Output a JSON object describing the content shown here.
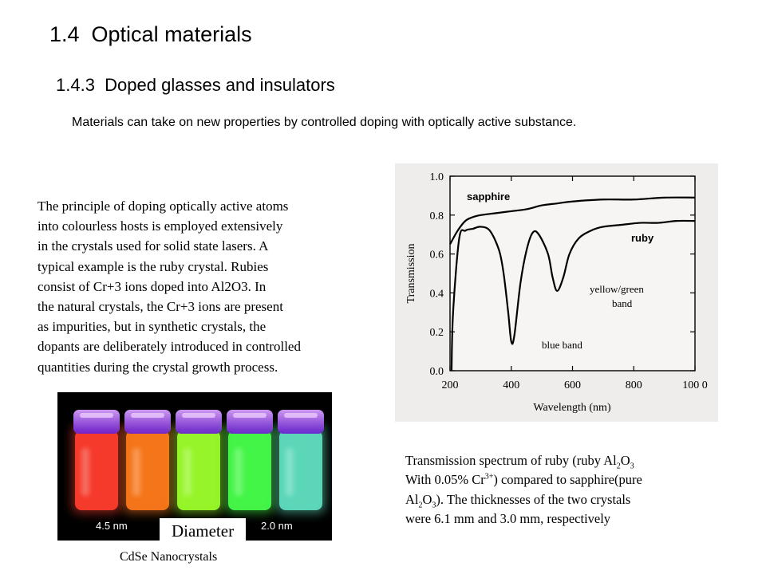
{
  "slide": {
    "title": "1.4  Optical materials",
    "subtitle": "1.4.3  Doped glasses and insulators",
    "intro": "Materials can take on new properties by controlled doping with optically active substance.",
    "body_lines": [
      "The principle of doping optically active atoms",
      "into colourless hosts is employed extensively",
      "in the crystals used for solid state lasers. A",
      "typical example is the ruby crystal. Rubies",
      "consist of Cr+3 ions doped into Al2O3. In",
      "the natural crystals, the Cr+3 ions are present",
      "as impurities, but in synthetic crystals,  the",
      "dopants are deliberately introduced in controlled",
      "quantities during the crystal growth process."
    ]
  },
  "figure": {
    "caption": {
      "p1": "Transmission spectrum of ruby (ruby Al",
      "sub1": "2",
      "p2": "O",
      "sub2": "3",
      "p3": "With 0.05% Cr",
      "sup1": "3+",
      "p4": ") compared to sapphire(pure",
      "p5": "Al",
      "sub3": "2",
      "p6": "O",
      "sub4": "3",
      "p7": "). The thicknesses of the two crystals",
      "p8": "were 6.1 mm and 3.0 mm, respectively"
    }
  },
  "chart_data": {
    "type": "line",
    "xlabel": "Wavelength (nm)",
    "ylabel": "Transmission",
    "xlim": [
      200,
      1000
    ],
    "ylim": [
      0.0,
      1.0
    ],
    "x_ticks": [
      "200",
      "400",
      "600",
      "800",
      "100 0"
    ],
    "y_ticks": [
      "0.0",
      "0.2",
      "0.4",
      "0.6",
      "0.8",
      "1.0"
    ],
    "series": [
      {
        "name": "sapphire",
        "x": [
          200,
          225,
          250,
          275,
          300,
          350,
          400,
          450,
          500,
          550,
          600,
          700,
          800,
          900,
          1000
        ],
        "y": [
          0.65,
          0.72,
          0.77,
          0.79,
          0.8,
          0.81,
          0.82,
          0.83,
          0.85,
          0.86,
          0.87,
          0.88,
          0.88,
          0.89,
          0.89
        ]
      },
      {
        "name": "ruby",
        "x": [
          205,
          210,
          230,
          250,
          275,
          300,
          330,
          360,
          375,
          390,
          400,
          410,
          430,
          450,
          470,
          490,
          520,
          535,
          550,
          570,
          590,
          620,
          660,
          700,
          760,
          820,
          880,
          940,
          1000
        ],
        "y": [
          0.0,
          0.3,
          0.68,
          0.72,
          0.73,
          0.74,
          0.72,
          0.62,
          0.5,
          0.3,
          0.15,
          0.18,
          0.45,
          0.62,
          0.71,
          0.7,
          0.6,
          0.48,
          0.41,
          0.48,
          0.6,
          0.68,
          0.72,
          0.74,
          0.75,
          0.76,
          0.76,
          0.77,
          0.77
        ]
      }
    ],
    "annotations": [
      "sapphire",
      "ruby",
      "yellow/green",
      "band",
      "blue band"
    ]
  },
  "nanocrystals": {
    "label_left": "4.5 nm",
    "label_right": "2.0 nm",
    "label_center": "Diameter",
    "caption": "CdSe Nanocrystals",
    "colors": [
      "#ff3d2e",
      "#ff7a1a",
      "#9cff2a",
      "#46ff4a",
      "#5fe0c0"
    ]
  }
}
